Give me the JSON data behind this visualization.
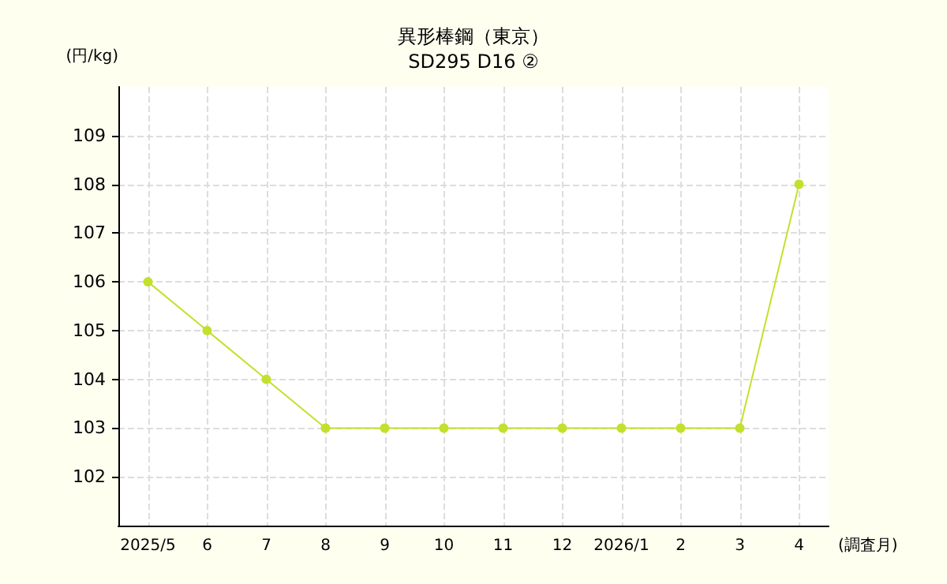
{
  "chart_data": {
    "type": "line",
    "title": "異形棒鋼（東京）",
    "subtitle": "SD295 D16 ②",
    "ylabel": "(円/kg)",
    "xlabel": "(調査月)",
    "categories": [
      "2025/5",
      "6",
      "7",
      "8",
      "9",
      "10",
      "11",
      "12",
      "2026/1",
      "2",
      "3",
      "4"
    ],
    "series": [
      {
        "color": "#c4e02c",
        "values": [
          106,
          105,
          104,
          103,
          103,
          103,
          103,
          103,
          103,
          103,
          103,
          108
        ]
      }
    ],
    "ylim": [
      101,
      110
    ],
    "yticks": [
      102,
      103,
      104,
      105,
      106,
      107,
      108,
      109
    ],
    "grid": true,
    "marker": "circle",
    "line_style": "solid"
  }
}
